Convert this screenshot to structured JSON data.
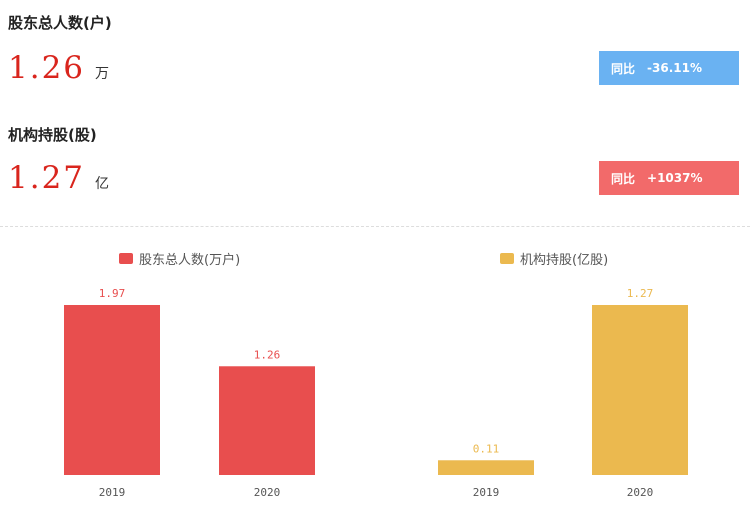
{
  "colors": {
    "red": "#e84e4e",
    "gold": "#ebb94f",
    "value_red": "#d9251d",
    "badge_blue": "#6ab2f2",
    "badge_red": "#f26a6a"
  },
  "stats": [
    {
      "label": "股东总人数(户)",
      "value": "1.26",
      "unit": "万",
      "badge_key": "同比",
      "badge_value": "-36.11%"
    },
    {
      "label": "机构持股(股)",
      "value": "1.27",
      "unit": "亿",
      "badge_key": "同比",
      "badge_value": "+1037%"
    }
  ],
  "chart_data": [
    {
      "type": "bar",
      "categories": [
        "2019",
        "2020"
      ],
      "series": [
        {
          "name": "股东总人数(万户)",
          "values": [
            1.97,
            1.26
          ]
        }
      ],
      "value_labels": [
        "1.97",
        "1.26"
      ],
      "ylim": [
        0,
        1.97
      ],
      "grid": false,
      "legend": "top",
      "color": "#e84e4e"
    },
    {
      "type": "bar",
      "categories": [
        "2019",
        "2020"
      ],
      "series": [
        {
          "name": "机构持股(亿股)",
          "values": [
            0.11,
            1.27
          ]
        }
      ],
      "value_labels": [
        "0.11",
        "1.27"
      ],
      "ylim": [
        0,
        1.27
      ],
      "grid": false,
      "legend": "top",
      "color": "#ebb94f"
    }
  ]
}
